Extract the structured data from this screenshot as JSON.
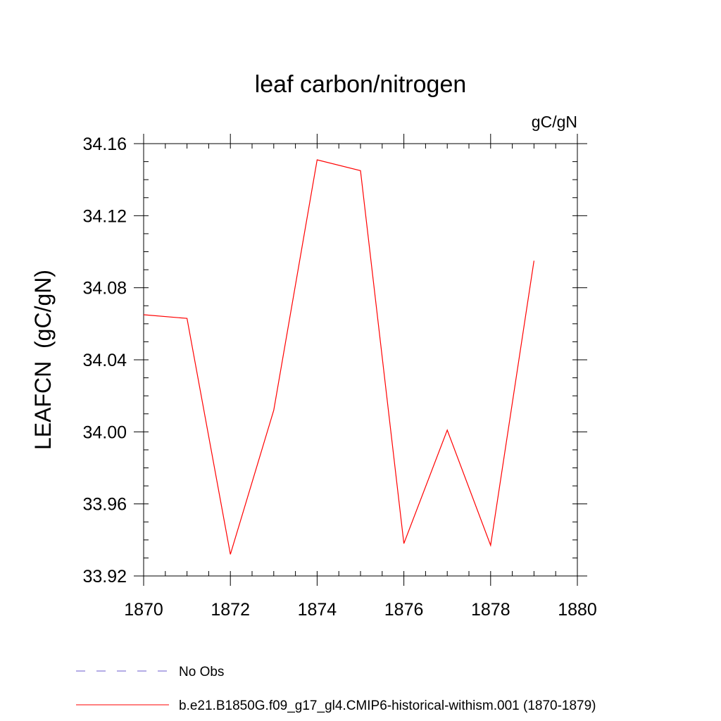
{
  "chart_data": {
    "type": "line",
    "title": "leaf carbon/nitrogen",
    "units_label": "gC/gN",
    "xlabel": "",
    "ylabel": "LEAFCN  (gC/gN)",
    "xlim": [
      1870,
      1880
    ],
    "ylim": [
      33.92,
      34.16
    ],
    "x_ticks": [
      1870,
      1872,
      1874,
      1876,
      1878,
      1880
    ],
    "x_tick_labels": [
      "1870",
      "1872",
      "1874",
      "1876",
      "1878",
      "1880"
    ],
    "x_minor_step": 0.5,
    "y_ticks": [
      33.92,
      33.96,
      34.0,
      34.04,
      34.08,
      34.12,
      34.16
    ],
    "y_tick_labels": [
      "33.92",
      "33.96",
      "34.00",
      "34.04",
      "34.08",
      "34.12",
      "34.16"
    ],
    "y_minor_step": 0.01,
    "grid": false,
    "legend_position": "bottom",
    "series": [
      {
        "name": "b.e21.B1850G.f09_g17_gl4.CMIP6-historical-withism.001 (1870-1879)",
        "color": "#ff0000",
        "style": "solid",
        "x": [
          1870,
          1871,
          1872,
          1873,
          1874,
          1875,
          1876,
          1877,
          1878,
          1879
        ],
        "y": [
          34.065,
          34.063,
          33.932,
          34.012,
          34.151,
          34.145,
          33.938,
          34.001,
          33.937,
          34.095
        ]
      }
    ],
    "legend": [
      {
        "label": "No Obs",
        "color": "#6a5acd",
        "style": "dashed"
      },
      {
        "label": "b.e21.B1850G.f09_g17_gl4.CMIP6-historical-withism.001 (1870-1879)",
        "color": "#ff0000",
        "style": "solid"
      }
    ]
  }
}
